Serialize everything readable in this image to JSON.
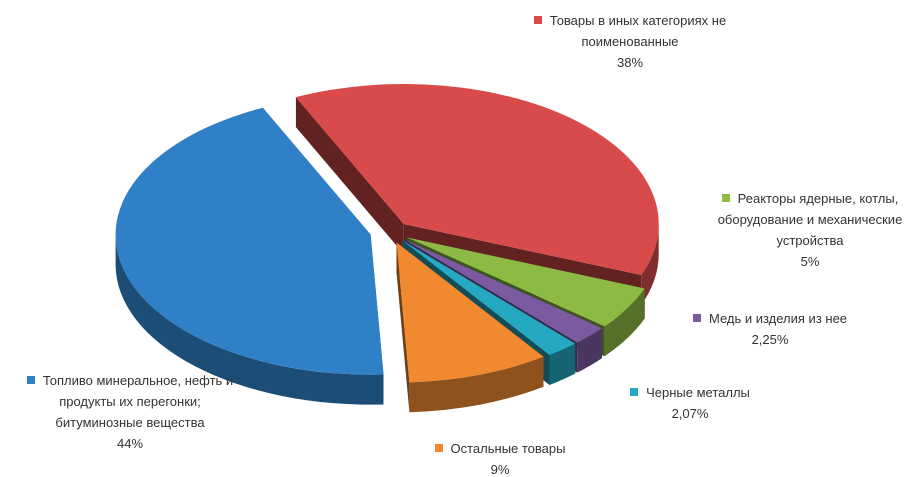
{
  "chart_data": {
    "type": "pie",
    "categories": [
      "Товары в иных категориях не поименованные",
      "Реакторы ядерные, котлы, оборудование и механические устройства",
      "Медь и изделия из нее",
      "Черные металлы",
      "Остальные товары",
      "Топливо минеральное, нефть и продукты их перегонки; битуминозные вещества"
    ],
    "values": [
      38,
      5,
      2.25,
      2.07,
      9,
      44
    ],
    "value_labels": [
      "38%",
      "5%",
      "2,25%",
      "2,07%",
      "9%",
      "44%"
    ],
    "colors": [
      "#d94b4b",
      "#8dba43",
      "#7b5aa0",
      "#25a9c2",
      "#f0892f",
      "#2f80c6"
    ]
  }
}
